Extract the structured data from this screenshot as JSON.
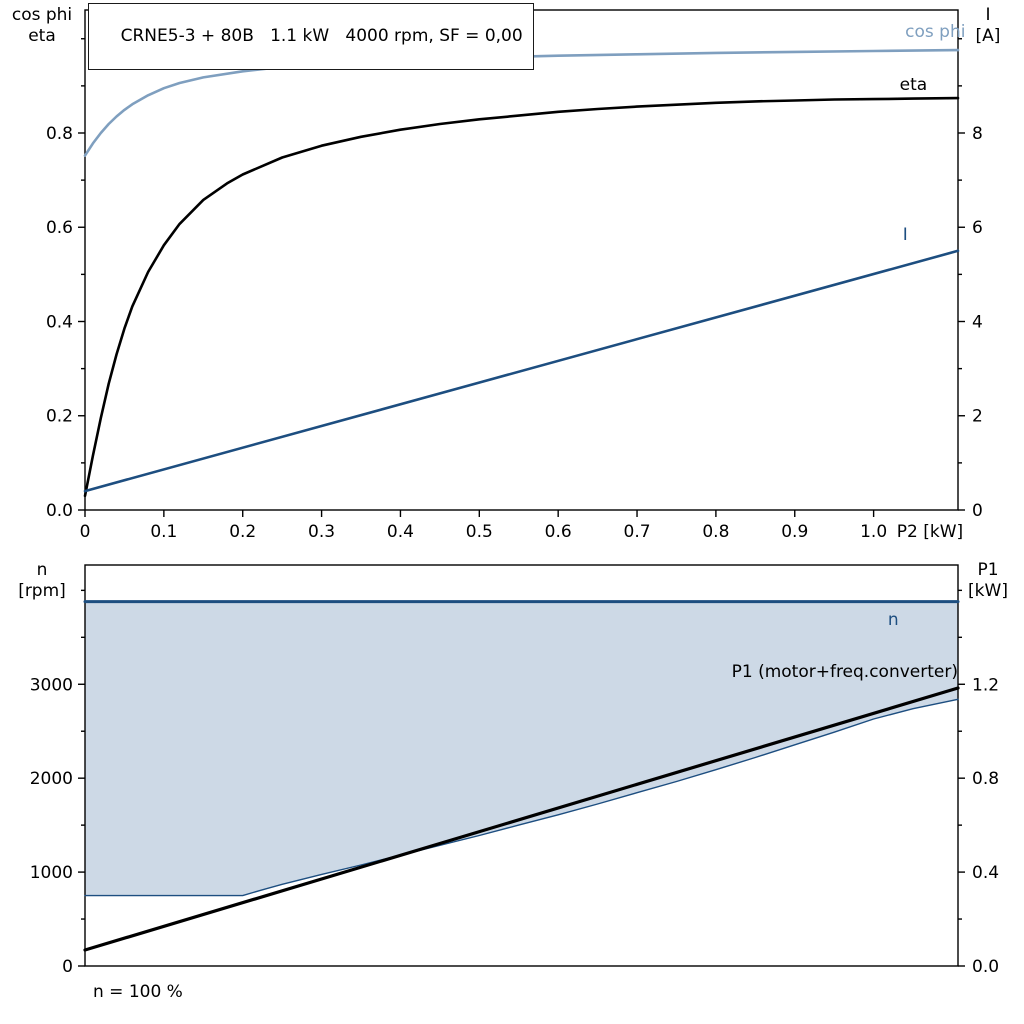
{
  "title_box": {
    "text": "CRNE5-3 + 80B   1.1 kW   4000 rpm, SF = 0,00"
  },
  "colors": {
    "cos_phi": "#7f9fbf",
    "eta": "#000000",
    "current": "#1d4e80",
    "speed": "#1d4e80",
    "p1": "#000000",
    "envelope_fill": "#cdd9e6",
    "axis": "#000000",
    "background": "#ffffff"
  },
  "chart_data": [
    {
      "name": "motor-curves-chart",
      "type": "line",
      "x_axis": {
        "label": "P2 [kW]",
        "range": [
          0,
          1.107
        ],
        "ticks": [
          {
            "v": 0.0,
            "label": "0"
          },
          {
            "v": 0.1,
            "label": "0.1"
          },
          {
            "v": 0.2,
            "label": "0.2"
          },
          {
            "v": 0.3,
            "label": "0.3"
          },
          {
            "v": 0.4,
            "label": "0.4"
          },
          {
            "v": 0.5,
            "label": "0.5"
          },
          {
            "v": 0.6,
            "label": "0.6"
          },
          {
            "v": 0.7,
            "label": "0.7"
          },
          {
            "v": 0.8,
            "label": "0.8"
          },
          {
            "v": 0.9,
            "label": "0.9"
          },
          {
            "v": 1.0,
            "label": "1.0"
          }
        ]
      },
      "y_left": {
        "title_lines": [
          "cos phi",
          "eta"
        ],
        "range": [
          0,
          1.061
        ],
        "ticks": [
          {
            "v": 0.0,
            "label": "0.0"
          },
          {
            "v": 0.1,
            "label": ""
          },
          {
            "v": 0.2,
            "label": "0.2"
          },
          {
            "v": 0.3,
            "label": ""
          },
          {
            "v": 0.4,
            "label": "0.4"
          },
          {
            "v": 0.5,
            "label": ""
          },
          {
            "v": 0.6,
            "label": "0.6"
          },
          {
            "v": 0.7,
            "label": ""
          },
          {
            "v": 0.8,
            "label": "0.8"
          },
          {
            "v": 0.9,
            "label": ""
          },
          {
            "v": 1.0,
            "label": ""
          }
        ]
      },
      "y_right": {
        "title_lines": [
          "I",
          "[A]"
        ],
        "range": [
          0,
          10.61
        ],
        "ticks": [
          {
            "v": 0,
            "label": "0"
          },
          {
            "v": 1,
            "label": ""
          },
          {
            "v": 2,
            "label": "2"
          },
          {
            "v": 3,
            "label": ""
          },
          {
            "v": 4,
            "label": "4"
          },
          {
            "v": 5,
            "label": ""
          },
          {
            "v": 6,
            "label": "6"
          },
          {
            "v": 7,
            "label": ""
          },
          {
            "v": 8,
            "label": "8"
          },
          {
            "v": 9,
            "label": ""
          },
          {
            "v": 10,
            "label": ""
          }
        ]
      },
      "series": [
        {
          "name": "cos-phi-curve",
          "axis": "left",
          "color": "cos_phi",
          "width": 2.6,
          "label": {
            "text": "cos phi",
            "x": 1.04,
            "v": 1.004,
            "anchor": "end2"
          },
          "points": [
            [
              0,
              0.752
            ],
            [
              0.01,
              0.778
            ],
            [
              0.02,
              0.8
            ],
            [
              0.03,
              0.819
            ],
            [
              0.04,
              0.835
            ],
            [
              0.05,
              0.849
            ],
            [
              0.06,
              0.861
            ],
            [
              0.08,
              0.88
            ],
            [
              0.1,
              0.895
            ],
            [
              0.12,
              0.906
            ],
            [
              0.15,
              0.918
            ],
            [
              0.2,
              0.931
            ],
            [
              0.25,
              0.94
            ],
            [
              0.3,
              0.946
            ],
            [
              0.35,
              0.95
            ],
            [
              0.4,
              0.954
            ],
            [
              0.5,
              0.96
            ],
            [
              0.6,
              0.964
            ],
            [
              0.7,
              0.967
            ],
            [
              0.8,
              0.97
            ],
            [
              0.9,
              0.972
            ],
            [
              1.0,
              0.974
            ],
            [
              1.107,
              0.976
            ]
          ]
        },
        {
          "name": "eta-curve",
          "axis": "left",
          "color": "eta",
          "width": 2.6,
          "label": {
            "text": "eta",
            "x": 1.033,
            "v": 0.891,
            "anchor": "start"
          },
          "points": [
            [
              0,
              0.03
            ],
            [
              0.01,
              0.115
            ],
            [
              0.02,
              0.195
            ],
            [
              0.03,
              0.268
            ],
            [
              0.04,
              0.33
            ],
            [
              0.05,
              0.385
            ],
            [
              0.06,
              0.432
            ],
            [
              0.08,
              0.505
            ],
            [
              0.1,
              0.562
            ],
            [
              0.12,
              0.607
            ],
            [
              0.15,
              0.658
            ],
            [
              0.18,
              0.693
            ],
            [
              0.2,
              0.712
            ],
            [
              0.25,
              0.748
            ],
            [
              0.3,
              0.773
            ],
            [
              0.35,
              0.792
            ],
            [
              0.4,
              0.807
            ],
            [
              0.45,
              0.819
            ],
            [
              0.5,
              0.829
            ],
            [
              0.55,
              0.837
            ],
            [
              0.6,
              0.845
            ],
            [
              0.65,
              0.851
            ],
            [
              0.7,
              0.856
            ],
            [
              0.75,
              0.86
            ],
            [
              0.8,
              0.864
            ],
            [
              0.85,
              0.867
            ],
            [
              0.9,
              0.869
            ],
            [
              0.95,
              0.871
            ],
            [
              1.0,
              0.872
            ],
            [
              1.05,
              0.873
            ],
            [
              1.107,
              0.874
            ]
          ]
        },
        {
          "name": "current-curve",
          "axis": "right",
          "color": "current",
          "width": 2.6,
          "label": {
            "text": "I",
            "x": 1.037,
            "v": 5.73,
            "anchor": "start"
          },
          "points": [
            [
              0,
              0.4
            ],
            [
              1.107,
              5.5
            ]
          ]
        }
      ]
    },
    {
      "name": "speed-power-chart",
      "type": "line",
      "footnote": "n = 100 %",
      "x_axis": {
        "label": "",
        "range": [
          0,
          1.107
        ],
        "ticks": []
      },
      "y_left": {
        "title_lines": [
          "n",
          "[rpm]"
        ],
        "range": [
          0,
          4270
        ],
        "ticks": [
          {
            "v": 0,
            "label": "0"
          },
          {
            "v": 500,
            "label": ""
          },
          {
            "v": 1000,
            "label": "1000"
          },
          {
            "v": 1500,
            "label": ""
          },
          {
            "v": 2000,
            "label": "2000"
          },
          {
            "v": 2500,
            "label": ""
          },
          {
            "v": 3000,
            "label": "3000"
          },
          {
            "v": 3500,
            "label": ""
          },
          {
            "v": 4000,
            "label": ""
          }
        ]
      },
      "y_right": {
        "title_lines": [
          "P1",
          "[kW]"
        ],
        "range": [
          0,
          1.708
        ],
        "ticks": [
          {
            "v": 0.0,
            "label": "0.0"
          },
          {
            "v": 0.2,
            "label": ""
          },
          {
            "v": 0.4,
            "label": "0.4"
          },
          {
            "v": 0.6,
            "label": ""
          },
          {
            "v": 0.8,
            "label": "0.8"
          },
          {
            "v": 1.0,
            "label": ""
          },
          {
            "v": 1.2,
            "label": "1.2"
          },
          {
            "v": 1.4,
            "label": ""
          },
          {
            "v": 1.6,
            "label": ""
          }
        ]
      },
      "region": {
        "name": "speed-operating-envelope",
        "axis": "left",
        "fill": "envelope_fill",
        "close_value": 3880,
        "points": [
          [
            0,
            750
          ],
          [
            0.2,
            750
          ],
          [
            0.22,
            800
          ],
          [
            0.25,
            870
          ],
          [
            0.3,
            975
          ],
          [
            0.35,
            1075
          ],
          [
            0.4,
            1180
          ],
          [
            0.45,
            1285
          ],
          [
            0.5,
            1390
          ],
          [
            0.55,
            1500
          ],
          [
            0.6,
            1610
          ],
          [
            0.65,
            1725
          ],
          [
            0.7,
            1845
          ],
          [
            0.75,
            1965
          ],
          [
            0.8,
            2090
          ],
          [
            0.85,
            2220
          ],
          [
            0.9,
            2355
          ],
          [
            0.95,
            2490
          ],
          [
            1.0,
            2630
          ],
          [
            1.05,
            2740
          ],
          [
            1.107,
            2840
          ]
        ]
      },
      "series": [
        {
          "name": "min-speed-curve",
          "axis": "left",
          "color": "speed",
          "width": 1.4,
          "points": [
            [
              0,
              750
            ],
            [
              0.2,
              750
            ],
            [
              0.22,
              800
            ],
            [
              0.25,
              870
            ],
            [
              0.3,
              975
            ],
            [
              0.35,
              1075
            ],
            [
              0.4,
              1180
            ],
            [
              0.45,
              1285
            ],
            [
              0.5,
              1390
            ],
            [
              0.55,
              1500
            ],
            [
              0.6,
              1610
            ],
            [
              0.65,
              1725
            ],
            [
              0.7,
              1845
            ],
            [
              0.75,
              1965
            ],
            [
              0.8,
              2090
            ],
            [
              0.85,
              2220
            ],
            [
              0.9,
              2355
            ],
            [
              0.95,
              2490
            ],
            [
              1.0,
              2630
            ],
            [
              1.05,
              2740
            ],
            [
              1.107,
              2840
            ]
          ]
        },
        {
          "name": "max-speed-line",
          "axis": "left",
          "color": "speed",
          "width": 3,
          "label": {
            "text": "n",
            "x": 1.018,
            "v": 3630,
            "anchor": "start"
          },
          "points": [
            [
              0,
              3880
            ],
            [
              1.107,
              3880
            ]
          ]
        },
        {
          "name": "p1-line",
          "axis": "right",
          "color": "p1",
          "width": 3.2,
          "label": {
            "text": "P1 (motor+freq.converter)",
            "x": 1.107,
            "v": 1.231,
            "anchor": "end"
          },
          "points": [
            [
              0,
              0.068
            ],
            [
              1.107,
              1.184
            ]
          ]
        }
      ]
    }
  ]
}
